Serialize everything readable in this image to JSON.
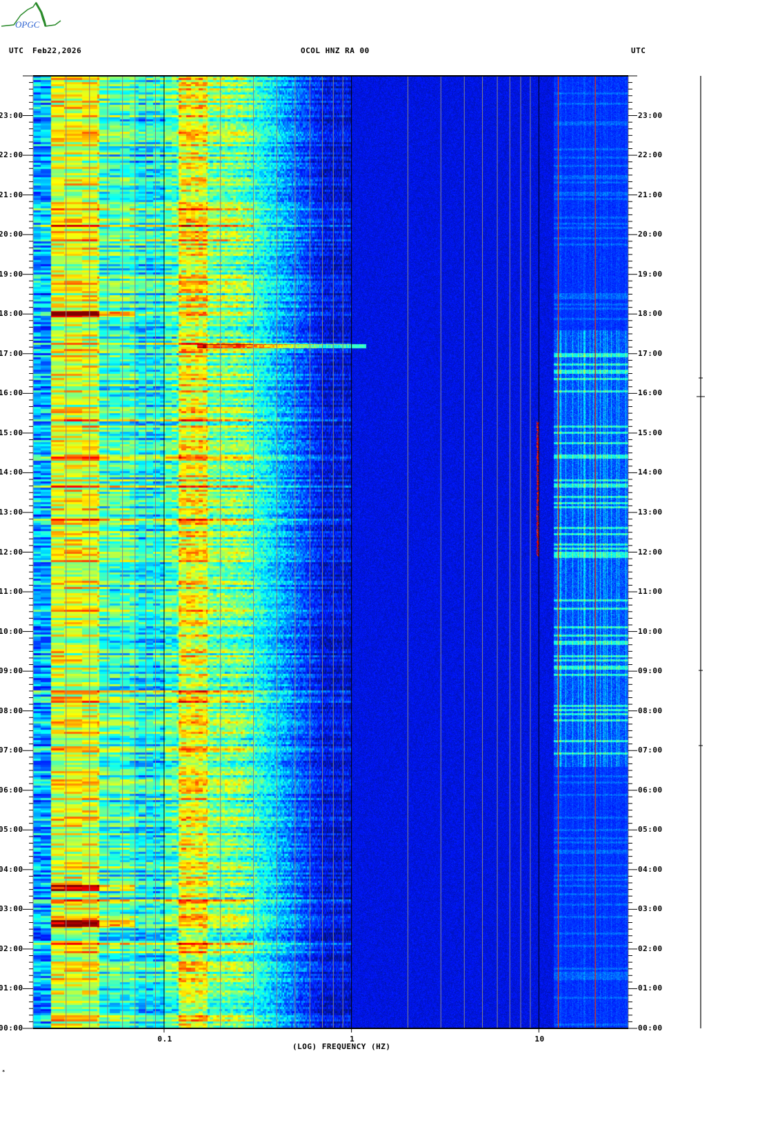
{
  "header": {
    "utc_left": "UTC",
    "date": "Feb22,2026",
    "station_title": "OCOL HNZ RA 00",
    "utc_right": "UTC"
  },
  "logo_text": "OPGC",
  "footer_mark": "*",
  "chart_data": {
    "type": "heatmap",
    "title": "OCOL HNZ RA 00",
    "xlabel": "(LOG) FREQUENCY (HZ)",
    "ylabel": "UTC",
    "x_scale": "log",
    "xlim": [
      0.02,
      30
    ],
    "x_tick_labels": [
      "0.1",
      "1",
      "10"
    ],
    "x_ticks": [
      0.1,
      1,
      10
    ],
    "ylim_hours": [
      0,
      24
    ],
    "y_tick_labels": [
      "00:00",
      "01:00",
      "02:00",
      "03:00",
      "04:00",
      "05:00",
      "06:00",
      "07:00",
      "08:00",
      "09:00",
      "10:00",
      "11:00",
      "12:00",
      "13:00",
      "14:00",
      "15:00",
      "16:00",
      "17:00",
      "18:00",
      "19:00",
      "20:00",
      "21:00",
      "22:00",
      "23:00"
    ],
    "colormap": "jet",
    "reference_lines_hz": {
      "black": [
        0.1,
        1,
        10
      ],
      "red": [
        12.7,
        20
      ]
    },
    "features": [
      {
        "name": "microseism band",
        "freq_hz": [
          0.12,
          0.17
        ],
        "level": "high"
      },
      {
        "name": "low-frequency energy",
        "freq_hz": [
          0.025,
          0.045
        ],
        "level": "high"
      },
      {
        "name": "strong low-frequency bursts",
        "time_hours": [
          18.0,
          3.55,
          2.65
        ],
        "freq_hz": [
          0.025,
          0.07
        ]
      },
      {
        "name": "transient event",
        "time_hours": 17.2,
        "freq_hz": [
          0.15,
          1.2
        ]
      },
      {
        "name": "high-frequency daytime noise",
        "time_hours": [
          6.6,
          17.6
        ],
        "freq_hz": [
          12,
          30
        ]
      },
      {
        "name": "10 Hz line activity",
        "time_hours": [
          11.9,
          15.3
        ],
        "freq_hz": 10
      }
    ]
  },
  "colors": {
    "low": "#0000e0",
    "mid": "#00ffff",
    "high": "#ffff00",
    "peak": "#ff0000"
  }
}
